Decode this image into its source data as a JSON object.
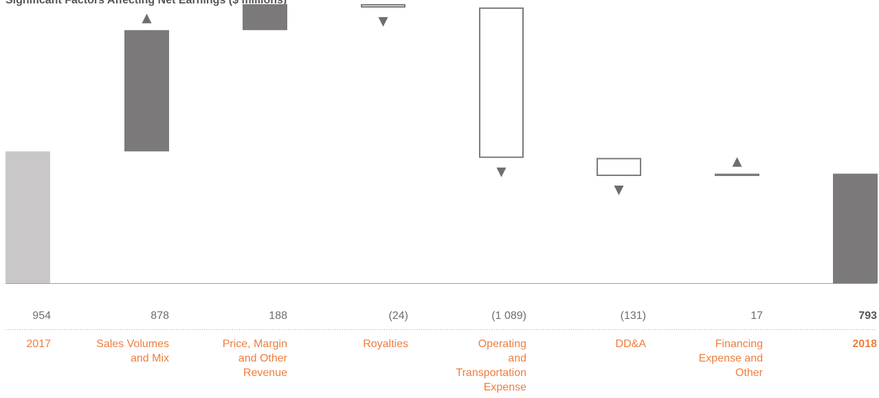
{
  "chart_data": {
    "type": "bar",
    "subtype": "waterfall",
    "title": "Significant Factors Affecting Net Earnings ($ millions)",
    "categories": [
      "2017",
      "Sales Volumes and Mix",
      "Price, Margin and Other Revenue",
      "Royalties",
      "Operating and Transportation Expense",
      "DD&A",
      "Financing Expense and Other",
      "2018"
    ],
    "category_lines": [
      [
        "2017"
      ],
      [
        "Sales Volumes",
        "and Mix"
      ],
      [
        "Price, Margin",
        "and Other",
        "Revenue"
      ],
      [
        "Royalties"
      ],
      [
        "Operating",
        "and",
        "Transportation",
        "Expense"
      ],
      [
        "DD&A"
      ],
      [
        "Financing",
        "Expense and",
        "Other"
      ],
      [
        "2018"
      ]
    ],
    "value_labels": [
      "954",
      "878",
      "188",
      "(24)",
      "(1 089)",
      "(131)",
      "17",
      "793"
    ],
    "values": [
      954,
      878,
      188,
      -24,
      -1089,
      -131,
      17,
      793
    ],
    "bar_kinds": [
      "start",
      "increase",
      "increase",
      "decrease",
      "decrease",
      "decrease",
      "increase",
      "total"
    ],
    "ylim": [
      0,
      2050
    ],
    "grid": false,
    "colors": {
      "start": "#c9c7c8",
      "increase": "#7b797a",
      "decrease_stroke": "#7b797a",
      "total": "#7b797a",
      "arrow": "#6f6d6e",
      "label": "#ee7d3d",
      "value": "#6d6d6d",
      "separator": "#b5b5b5"
    }
  }
}
